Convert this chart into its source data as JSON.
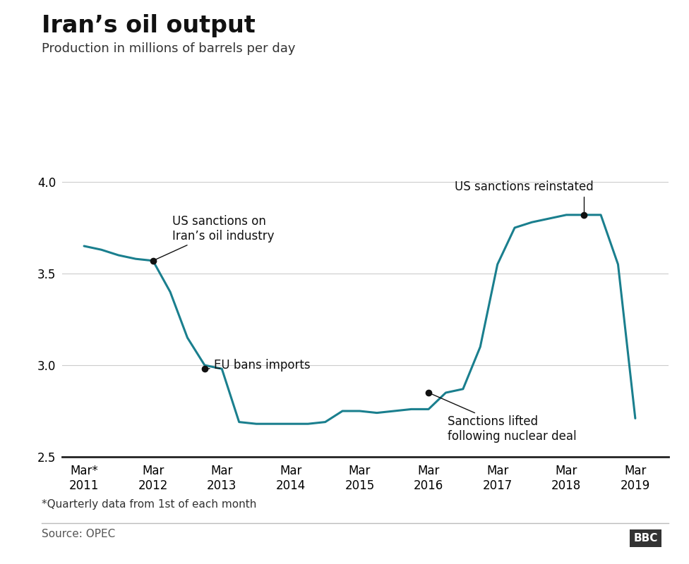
{
  "title": "Iran’s oil output",
  "subtitle": "Production in millions of barrels per day",
  "footnote": "*Quarterly data from 1st of each month",
  "source": "Source: OPEC",
  "line_color": "#1a7f8e",
  "line_width": 2.2,
  "background_color": "#ffffff",
  "ylim": [
    2.5,
    4.1
  ],
  "yticks": [
    2.5,
    3.0,
    3.5,
    4.0
  ],
  "x_values": [
    2011.17,
    2011.42,
    2011.67,
    2011.92,
    2012.17,
    2012.42,
    2012.67,
    2012.92,
    2013.17,
    2013.42,
    2013.67,
    2013.92,
    2014.17,
    2014.42,
    2014.67,
    2014.92,
    2015.17,
    2015.42,
    2015.67,
    2015.92,
    2016.17,
    2016.42,
    2016.67,
    2016.92,
    2017.17,
    2017.42,
    2017.67,
    2017.92,
    2018.17,
    2018.42,
    2018.67,
    2018.92,
    2019.17
  ],
  "y_values": [
    3.65,
    3.63,
    3.6,
    3.58,
    3.57,
    3.4,
    3.15,
    3.0,
    2.98,
    2.69,
    2.68,
    2.68,
    2.68,
    2.68,
    2.69,
    2.75,
    2.75,
    2.74,
    2.75,
    2.76,
    2.76,
    2.85,
    2.87,
    3.1,
    3.55,
    3.75,
    3.78,
    3.8,
    3.82,
    3.82,
    3.82,
    3.55,
    2.71
  ],
  "xtick_positions": [
    2011.17,
    2012.17,
    2013.17,
    2014.17,
    2015.17,
    2016.17,
    2017.17,
    2018.17,
    2019.17
  ],
  "xtick_labels": [
    "Mar*\n2011",
    "Mar\n2012",
    "Mar\n2013",
    "Mar\n2014",
    "Mar\n2015",
    "Mar\n2016",
    "Mar\n2017",
    "Mar\n2018",
    "Mar\n2019"
  ],
  "grid_color": "#cccccc",
  "title_fontsize": 24,
  "subtitle_fontsize": 13,
  "tick_fontsize": 12,
  "annotation_fontsize": 12,
  "footnote_fontsize": 11,
  "source_fontsize": 11
}
